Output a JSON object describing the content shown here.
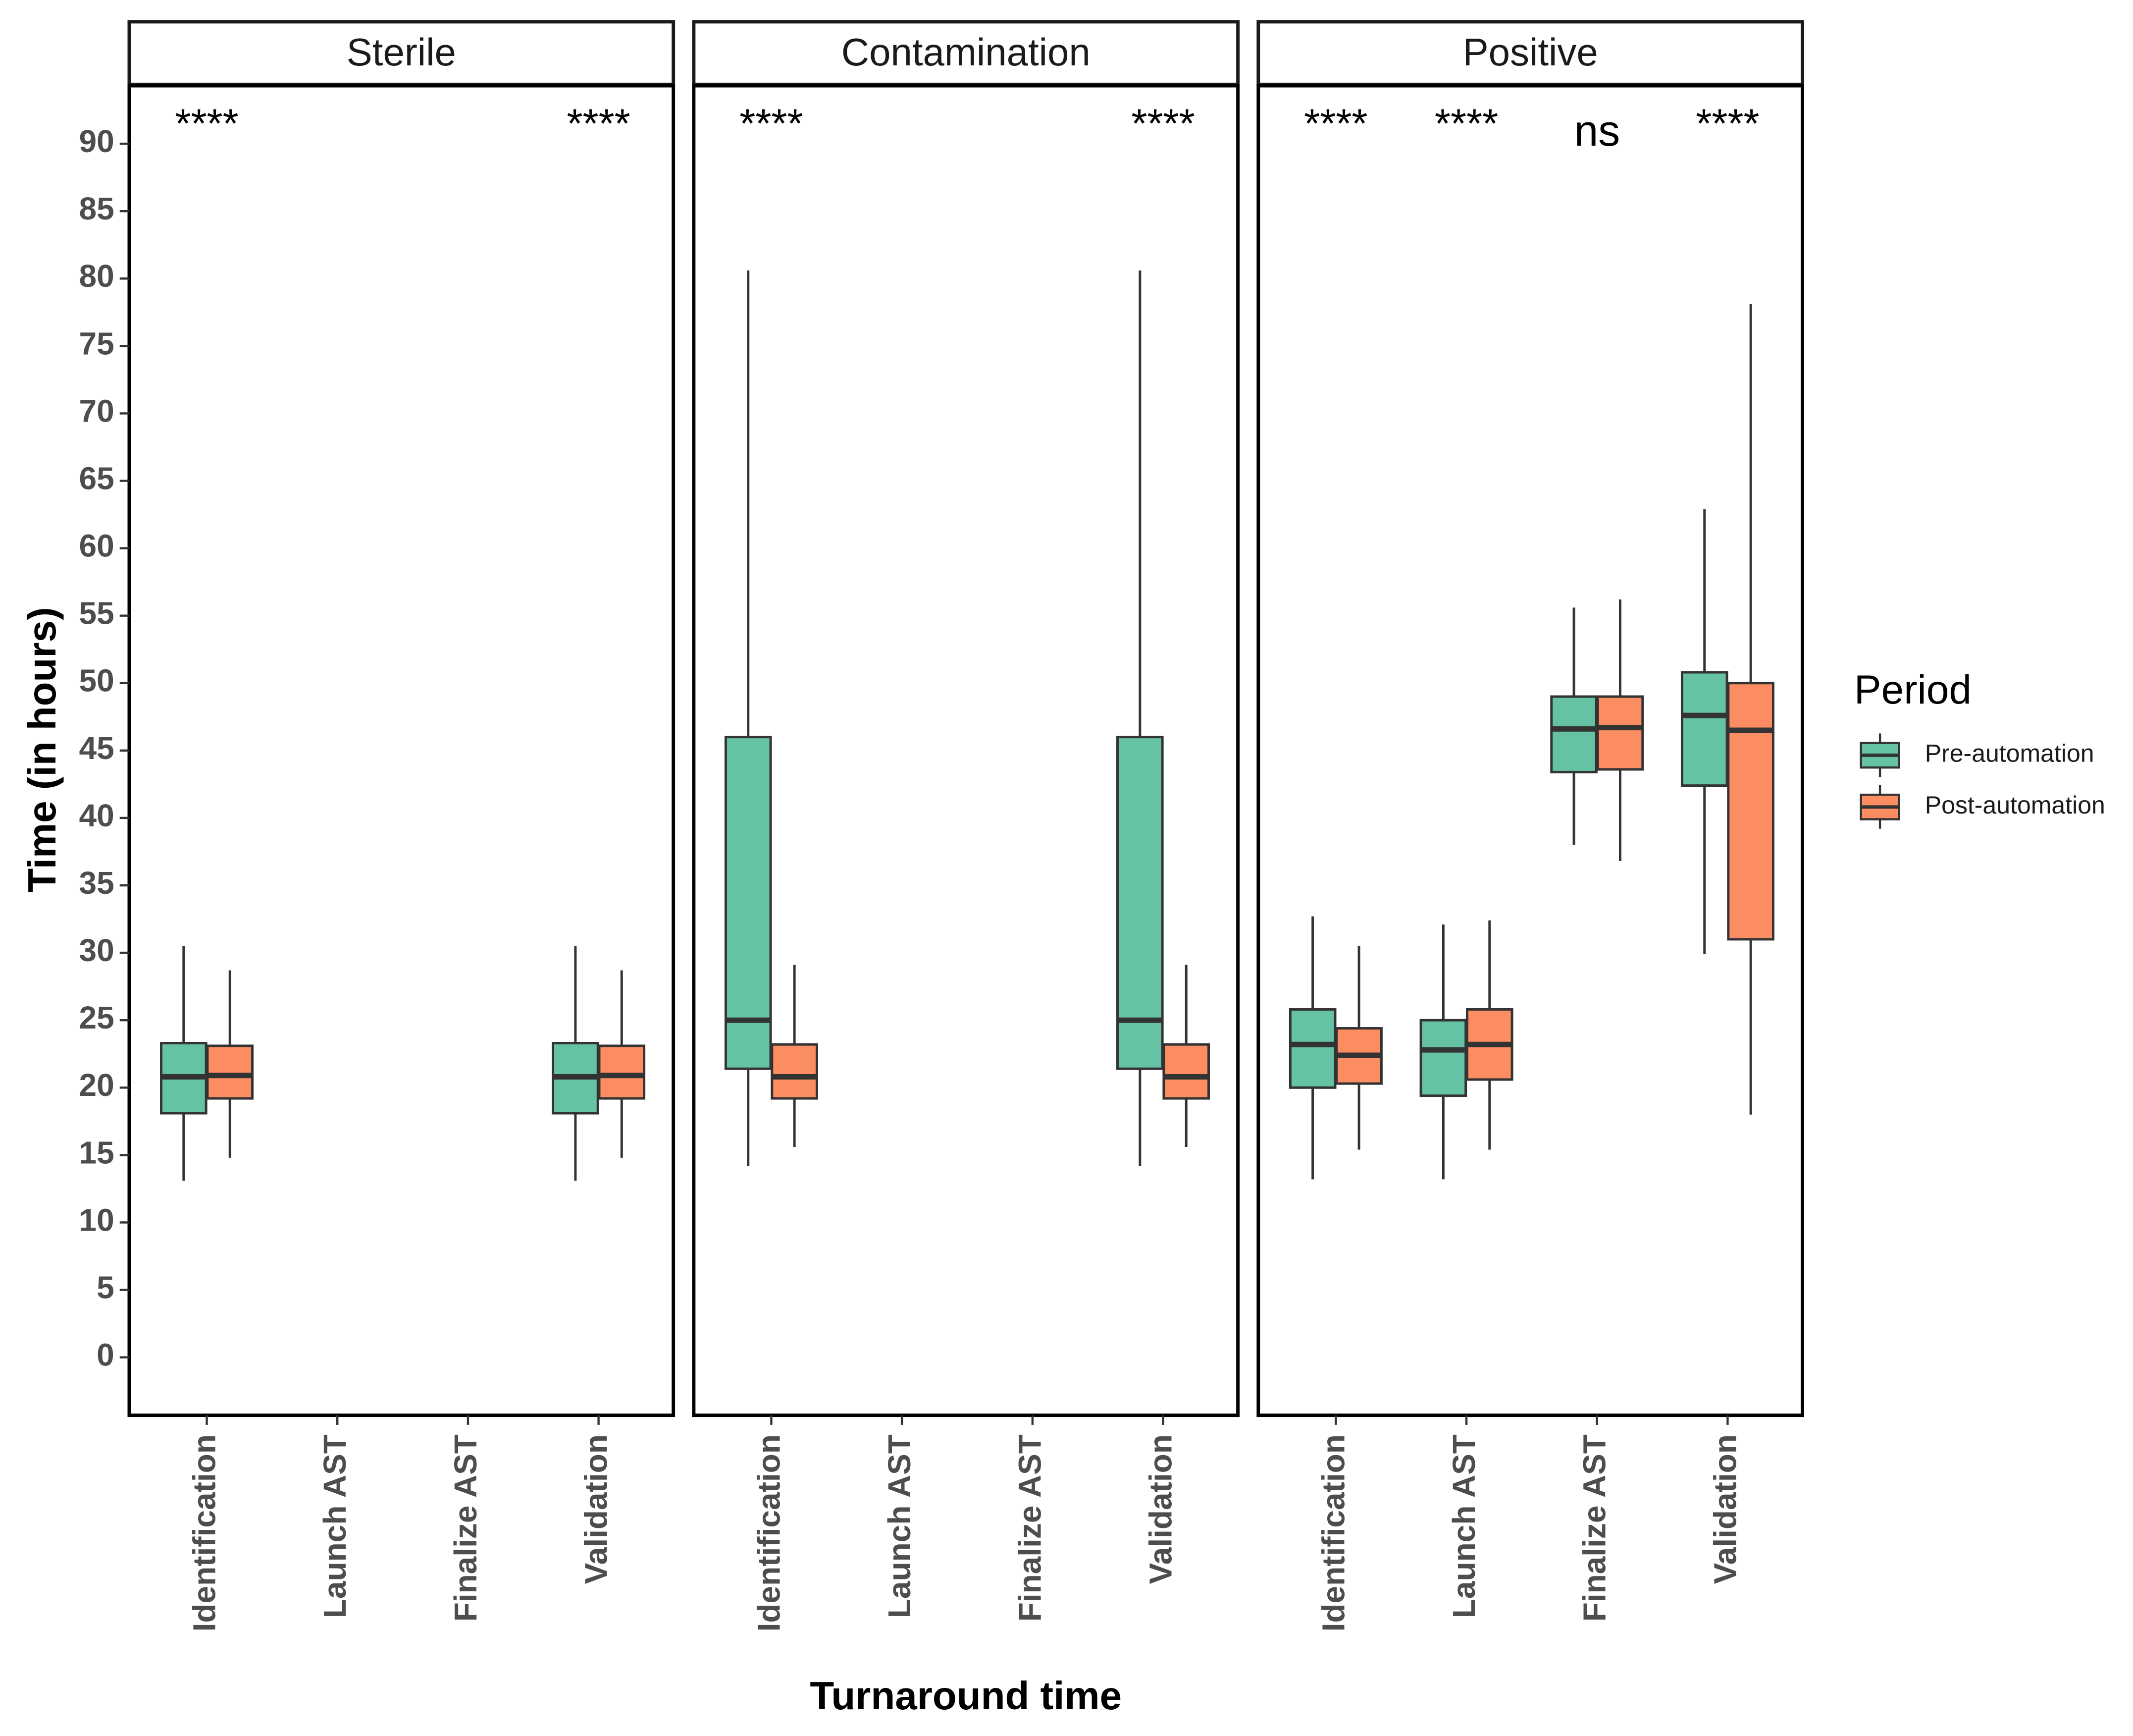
{
  "chart_data": {
    "type": "boxplot",
    "xlabel": "Turnaround time",
    "ylabel": "Time (in hours)",
    "ylim": [
      -4.3,
      94.3
    ],
    "yticks": [
      0,
      5,
      10,
      15,
      20,
      25,
      30,
      35,
      40,
      45,
      50,
      55,
      60,
      65,
      70,
      75,
      80,
      85,
      90
    ],
    "categories": [
      "Identification",
      "Launch AST",
      "Finalize AST",
      "Validation"
    ],
    "legend": {
      "title": "Period",
      "position": "right",
      "entries": [
        {
          "name": "Pre-automation",
          "color": "#66c2a5"
        },
        {
          "name": "Post-automation",
          "color": "#fc8d62"
        }
      ]
    },
    "panels": [
      {
        "name": "Sterile",
        "groups": [
          {
            "category": "Identification",
            "significance": "****",
            "pre": {
              "min": 13.1,
              "q1": 18.1,
              "median": 20.8,
              "q3": 23.3,
              "max": 30.5
            },
            "post": {
              "min": 14.8,
              "q1": 19.2,
              "median": 20.9,
              "q3": 23.1,
              "max": 28.7
            }
          },
          {
            "category": "Validation",
            "significance": "****",
            "pre": {
              "min": 13.1,
              "q1": 18.1,
              "median": 20.8,
              "q3": 23.3,
              "max": 30.5
            },
            "post": {
              "min": 14.8,
              "q1": 19.2,
              "median": 20.9,
              "q3": 23.1,
              "max": 28.7
            }
          }
        ]
      },
      {
        "name": "Contamination",
        "groups": [
          {
            "category": "Identification",
            "significance": "****",
            "pre": {
              "min": 14.2,
              "q1": 21.4,
              "median": 25.0,
              "q3": 46.0,
              "max": 80.6
            },
            "post": {
              "min": 15.6,
              "q1": 19.2,
              "median": 20.8,
              "q3": 23.2,
              "max": 29.1
            }
          },
          {
            "category": "Validation",
            "significance": "****",
            "pre": {
              "min": 14.2,
              "q1": 21.4,
              "median": 25.0,
              "q3": 46.0,
              "max": 80.6
            },
            "post": {
              "min": 15.6,
              "q1": 19.2,
              "median": 20.8,
              "q3": 23.2,
              "max": 29.1
            }
          }
        ]
      },
      {
        "name": "Positive",
        "groups": [
          {
            "category": "Identification",
            "significance": "****",
            "pre": {
              "min": 13.2,
              "q1": 20.0,
              "median": 23.2,
              "q3": 25.8,
              "max": 32.7
            },
            "post": {
              "min": 15.4,
              "q1": 20.3,
              "median": 22.4,
              "q3": 24.4,
              "max": 30.5
            }
          },
          {
            "category": "Launch AST",
            "significance": "****",
            "pre": {
              "min": 13.2,
              "q1": 19.4,
              "median": 22.8,
              "q3": 25.0,
              "max": 32.1
            },
            "post": {
              "min": 15.4,
              "q1": 20.6,
              "median": 23.2,
              "q3": 25.8,
              "max": 32.4
            }
          },
          {
            "category": "Finalize AST",
            "significance": "ns",
            "pre": {
              "min": 38.0,
              "q1": 43.4,
              "median": 46.6,
              "q3": 49.0,
              "max": 55.6
            },
            "post": {
              "min": 36.8,
              "q1": 43.6,
              "median": 46.7,
              "q3": 49.0,
              "max": 56.2
            }
          },
          {
            "category": "Validation",
            "significance": "****",
            "pre": {
              "min": 29.9,
              "q1": 42.4,
              "median": 47.6,
              "q3": 50.8,
              "max": 62.9
            },
            "post": {
              "min": 18.0,
              "q1": 31.0,
              "median": 46.5,
              "q3": 50.0,
              "max": 78.1
            }
          }
        ]
      }
    ]
  }
}
